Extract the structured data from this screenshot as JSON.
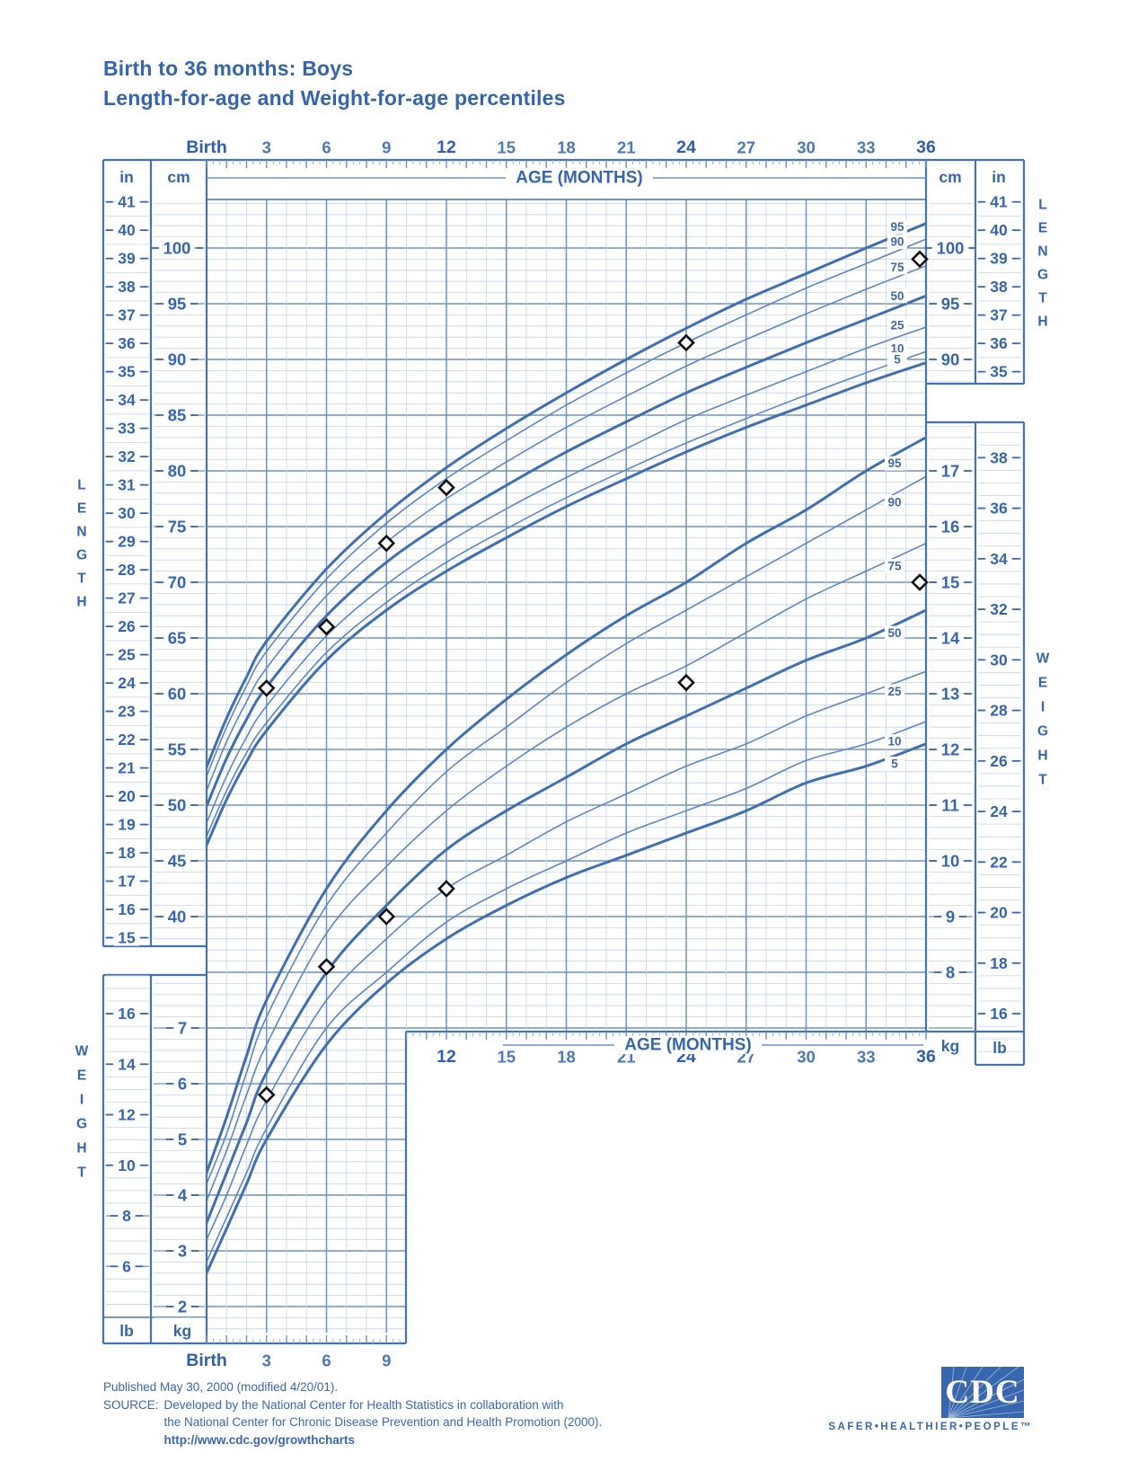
{
  "title": {
    "line1": "Birth to 36 months: Boys",
    "line2": "Length-for-age and Weight-for-age percentiles"
  },
  "axes": {
    "age_label": "AGE (MONTHS)",
    "top_months": [
      "Birth",
      "3",
      "6",
      "9",
      "12",
      "15",
      "18",
      "21",
      "24",
      "27",
      "30",
      "33",
      "36"
    ],
    "top_months_emphasis": [
      "Birth",
      "12",
      "24",
      "36"
    ],
    "bottom_left_months": [
      "Birth",
      "3",
      "6",
      "9"
    ],
    "bottom_right_months": [
      "12",
      "15",
      "18",
      "21",
      "24",
      "27",
      "30",
      "33",
      "36"
    ],
    "bottom_right_emphasis": [
      "12",
      "24",
      "36"
    ],
    "unit_in": "in",
    "unit_cm": "cm",
    "unit_lb": "lb",
    "unit_kg": "kg",
    "length_label": "LENGTH",
    "weight_label": "WEIGHT",
    "left_in_ticks": [
      41,
      40,
      39,
      38,
      37,
      36,
      35,
      34,
      33,
      32,
      31,
      30,
      29,
      28,
      27,
      26,
      25,
      24,
      23,
      22,
      21,
      20,
      19,
      18,
      17,
      16,
      15
    ],
    "left_cm_ticks": [
      100,
      95,
      90,
      85,
      80,
      75,
      70,
      65,
      60,
      55,
      50,
      45,
      40
    ],
    "right_cm_ticks": [
      100,
      95,
      90
    ],
    "right_in_ticks": [
      41,
      40,
      39,
      38,
      37,
      36,
      35
    ],
    "right_kg_ticks": [
      17,
      16,
      15,
      14,
      13,
      12,
      11,
      10,
      9,
      8
    ],
    "right_lb_ticks": [
      38,
      36,
      34,
      32,
      30,
      28,
      26,
      24,
      22,
      20,
      18,
      16
    ],
    "bottom_left_lb_ticks": [
      16,
      14,
      12,
      10,
      8,
      6
    ],
    "bottom_left_kg_ticks": [
      7,
      6,
      5,
      4,
      3,
      2
    ]
  },
  "chart_data": {
    "type": "line",
    "title": "Birth to 36 months: Boys — Length-for-age and Weight-for-age percentiles",
    "x_label": "AGE (MONTHS)",
    "x_range_months": [
      0,
      36
    ],
    "length_axis_cm_range": [
      40,
      104
    ],
    "length_axis_in_range": [
      15,
      41
    ],
    "weight_axis_kg_range": [
      2,
      17.8
    ],
    "weight_axis_lb_range": [
      6,
      38
    ],
    "grid": "on",
    "percentile_labels": [
      "95",
      "90",
      "75",
      "50",
      "25",
      "10",
      "5"
    ],
    "months": [
      0,
      1,
      2,
      3,
      6,
      9,
      12,
      15,
      18,
      21,
      24,
      27,
      30,
      33,
      36
    ],
    "length_percentiles_cm": {
      "p95": [
        53.4,
        57.8,
        61.5,
        64.7,
        71.2,
        76.2,
        80.3,
        83.8,
        87.0,
        90.0,
        92.8,
        95.4,
        97.7,
        100.0,
        102.2
      ],
      "p90": [
        52.6,
        57.0,
        60.7,
        63.8,
        70.3,
        75.3,
        79.3,
        82.7,
        85.9,
        88.8,
        91.5,
        94.0,
        96.4,
        98.6,
        100.8
      ],
      "p75": [
        51.3,
        55.7,
        59.3,
        62.3,
        68.8,
        73.6,
        77.5,
        80.8,
        83.9,
        86.7,
        89.4,
        91.8,
        94.1,
        96.3,
        98.4
      ],
      "p50": [
        49.9,
        54.2,
        57.7,
        60.6,
        67.0,
        71.8,
        75.5,
        78.7,
        81.7,
        84.4,
        87.0,
        89.3,
        91.5,
        93.6,
        95.7
      ],
      "p25": [
        48.4,
        52.6,
        56.1,
        58.9,
        65.2,
        69.8,
        73.5,
        76.6,
        79.4,
        82.0,
        84.6,
        86.8,
        88.9,
        91.0,
        92.9
      ],
      "p10": [
        47.2,
        51.3,
        54.7,
        57.4,
        63.7,
        68.2,
        71.8,
        74.8,
        77.6,
        80.1,
        82.5,
        84.7,
        86.8,
        88.8,
        90.7
      ],
      "p5": [
        46.4,
        50.5,
        53.9,
        56.7,
        63.0,
        67.5,
        71.0,
        74.0,
        76.8,
        79.3,
        81.7,
        83.9,
        85.9,
        87.9,
        89.7
      ]
    },
    "weight_percentiles_kg": {
      "p95": [
        4.4,
        5.4,
        6.5,
        7.5,
        9.5,
        10.9,
        12.0,
        12.9,
        13.7,
        14.4,
        15.0,
        15.7,
        16.3,
        17.0,
        17.6
      ],
      "p90": [
        4.2,
        5.1,
        6.2,
        7.2,
        9.2,
        10.5,
        11.6,
        12.4,
        13.2,
        13.9,
        14.5,
        15.1,
        15.7,
        16.3,
        16.9
      ],
      "p75": [
        3.9,
        4.8,
        5.8,
        6.7,
        8.7,
        9.9,
        10.9,
        11.7,
        12.4,
        13.0,
        13.5,
        14.1,
        14.7,
        15.2,
        15.7
      ],
      "p50": [
        3.5,
        4.4,
        5.3,
        6.2,
        8.0,
        9.2,
        10.2,
        10.9,
        11.5,
        12.1,
        12.6,
        13.1,
        13.6,
        14.0,
        14.5
      ],
      "p25": [
        3.2,
        4.0,
        4.9,
        5.7,
        7.5,
        8.6,
        9.5,
        10.1,
        10.7,
        11.2,
        11.7,
        12.1,
        12.6,
        13.0,
        13.4
      ],
      "p10": [
        2.8,
        3.6,
        4.4,
        5.2,
        7.0,
        8.0,
        8.9,
        9.5,
        10.0,
        10.5,
        10.9,
        11.3,
        11.8,
        12.1,
        12.5
      ],
      "p5": [
        2.6,
        3.4,
        4.2,
        5.0,
        6.7,
        7.8,
        8.6,
        9.2,
        9.7,
        10.1,
        10.5,
        10.9,
        11.4,
        11.7,
        12.1
      ]
    },
    "patient_length_points": {
      "months": [
        3,
        6,
        9,
        12,
        24,
        36
      ],
      "cm": [
        60.5,
        66,
        73.5,
        78.5,
        91.5,
        99
      ]
    },
    "patient_weight_points": {
      "months": [
        3,
        6,
        9,
        12,
        24,
        36
      ],
      "kg": [
        5.8,
        8.1,
        9.0,
        9.5,
        13.2,
        15.0
      ]
    },
    "bold_percentiles": [
      "p95",
      "p50",
      "p5"
    ]
  },
  "footer": {
    "published": "Published May 30, 2000 (modified 4/20/01).",
    "source_label": "SOURCE:",
    "source_line1": "Developed by the National Center for Health Statistics in collaboration with",
    "source_line2": "the National Center for Chronic Disease Prevention and Health Promotion (2000).",
    "url": "http://www.cdc.gov/growthcharts"
  },
  "logo": {
    "cdc": "CDC",
    "tagline": "SAFER•HEALTHIER•PEOPLE™"
  },
  "colors": {
    "text_blue": "#3566ad",
    "grid_minor": "#c3d5ec",
    "grid_major": "#6b92c8",
    "frame": "#4373b0",
    "curve_bold": "#3f6fae",
    "curve_light": "#5d86c0",
    "diamond": "#111111"
  }
}
